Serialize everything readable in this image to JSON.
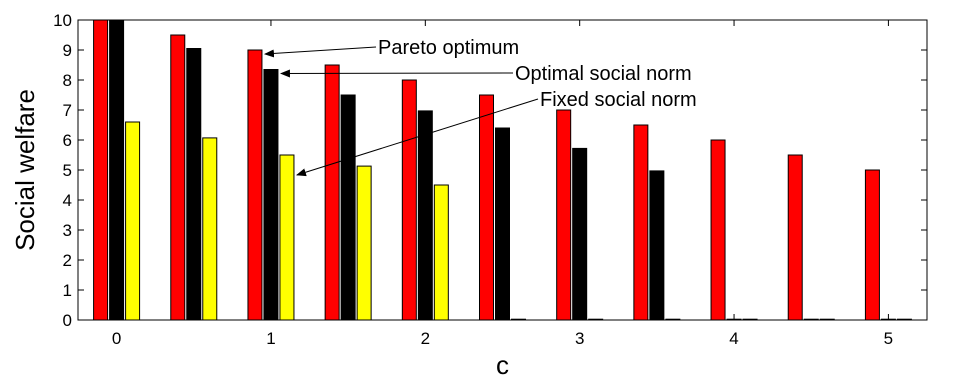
{
  "chart_data": {
    "type": "bar",
    "xlabel": "c",
    "ylabel": "Social welfare",
    "xlim": [
      -0.25,
      5.25
    ],
    "ylim": [
      0,
      10
    ],
    "xticks": [
      0,
      1,
      2,
      3,
      4,
      5
    ],
    "yticks": [
      0,
      1,
      2,
      3,
      4,
      5,
      6,
      7,
      8,
      9,
      10
    ],
    "grid": false,
    "series": [
      {
        "name": "Pareto optimum",
        "color": "#ff0000",
        "x": [
          0,
          0.5,
          1,
          1.5,
          2,
          2.5,
          3,
          3.5,
          4,
          4.5,
          5
        ],
        "values": [
          10,
          9.5,
          9.0,
          8.5,
          8.0,
          7.5,
          7.0,
          6.5,
          6.0,
          5.5,
          5.0
        ]
      },
      {
        "name": "Optimal social norm",
        "color": "#000000",
        "x": [
          0,
          0.5,
          1,
          1.5,
          2,
          2.5,
          3,
          3.5,
          4,
          4.5,
          5
        ],
        "values": [
          10,
          9.05,
          8.35,
          7.5,
          6.97,
          6.4,
          5.72,
          4.97,
          0,
          0,
          0
        ]
      },
      {
        "name": "Fixed social norm",
        "color": "#ffff00",
        "x": [
          0,
          0.5,
          1,
          1.5,
          2,
          2.5,
          3,
          3.5,
          4,
          4.5,
          5
        ],
        "values": [
          6.6,
          6.07,
          5.5,
          5.13,
          4.5,
          0,
          0,
          0,
          0,
          0,
          0
        ]
      }
    ],
    "annotations": [
      {
        "text": "Pareto optimum",
        "target": {
          "x": 1,
          "value": 9.0
        }
      },
      {
        "text": "Optimal social norm",
        "target": {
          "x": 1,
          "value": 8.35
        }
      },
      {
        "text": "Fixed social norm",
        "target": {
          "x": 1,
          "value": 5.5
        }
      }
    ]
  }
}
